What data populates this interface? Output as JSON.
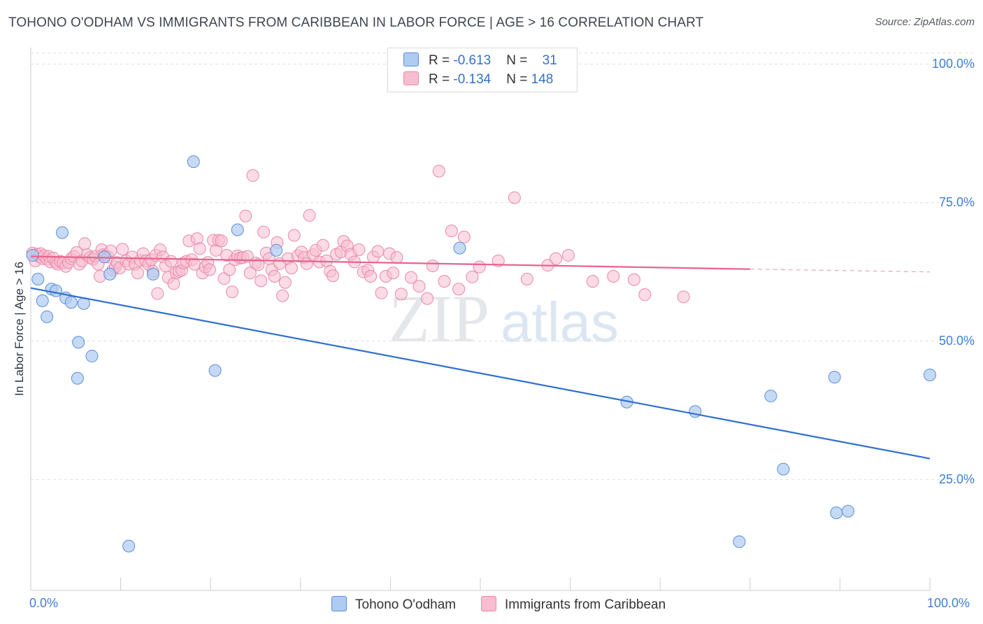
{
  "header": {
    "title": "TOHONO O'ODHAM VS IMMIGRANTS FROM CARIBBEAN IN LABOR FORCE | AGE > 16 CORRELATION CHART",
    "source": "Source: ZipAtlas.com"
  },
  "legend": {
    "series1": {
      "r_label": "R = ",
      "r_value": "-0.613",
      "n_label": "N = ",
      "n_value": "31"
    },
    "series2": {
      "r_label": "R = ",
      "r_value": "-0.134",
      "n_label": "N = ",
      "n_value": "148"
    }
  },
  "watermark": {
    "zip": "ZIP",
    "atlas": "atlas"
  },
  "colors": {
    "blue_fill": "#aecbf2",
    "blue_stroke": "#5b8fd6",
    "blue_line": "#2f6fcf",
    "pink_fill": "#f7bdd0",
    "pink_stroke": "#e889a8",
    "pink_line": "#e8638f",
    "tick_text": "#3f7fd0",
    "grid": "#dcdfe4"
  },
  "chart_data": {
    "type": "scatter",
    "title": "TOHONO O'ODHAM VS IMMIGRANTS FROM CARIBBEAN IN LABOR FORCE | AGE > 16 CORRELATION CHART",
    "ylabel": "In Labor Force | Age > 16",
    "xlabel": "",
    "xlim": [
      0,
      100
    ],
    "ylim": [
      5,
      103
    ],
    "x_tick_labels": [
      "0.0%",
      "100.0%"
    ],
    "y_tick_labels": [
      "25.0%",
      "50.0%",
      "75.0%",
      "100.0%"
    ],
    "y_ticks": [
      25,
      50,
      75,
      100
    ],
    "grid": true,
    "legend_position": "top-center",
    "series": [
      {
        "name": "Tohono O'odham",
        "r": -0.613,
        "n": 31,
        "trend": {
          "x": [
            0,
            100
          ],
          "y": [
            59.6,
            28.8
          ]
        },
        "points": [
          [
            0.2,
            65.5
          ],
          [
            0.8,
            61.2
          ],
          [
            1.3,
            57.3
          ],
          [
            1.8,
            54.4
          ],
          [
            2.3,
            59.4
          ],
          [
            2.8,
            59.1
          ],
          [
            3.5,
            69.6
          ],
          [
            3.9,
            57.8
          ],
          [
            4.5,
            57.0
          ],
          [
            5.2,
            43.3
          ],
          [
            5.3,
            49.8
          ],
          [
            5.9,
            56.8
          ],
          [
            6.8,
            47.3
          ],
          [
            8.2,
            65.2
          ],
          [
            8.8,
            62.1
          ],
          [
            10.9,
            13.0
          ],
          [
            13.6,
            62.1
          ],
          [
            18.1,
            82.4
          ],
          [
            20.5,
            44.7
          ],
          [
            23.0,
            70.1
          ],
          [
            27.3,
            66.4
          ],
          [
            47.7,
            66.8
          ],
          [
            66.3,
            39.0
          ],
          [
            73.9,
            37.3
          ],
          [
            78.8,
            13.8
          ],
          [
            82.3,
            40.1
          ],
          [
            83.7,
            26.9
          ],
          [
            89.4,
            43.5
          ],
          [
            89.6,
            19.0
          ],
          [
            90.9,
            19.3
          ],
          [
            100.0,
            43.9
          ]
        ]
      },
      {
        "name": "Immigrants from Caribbean",
        "r": -0.134,
        "n": 148,
        "trend": {
          "x": [
            0,
            80
          ],
          "y": [
            65.3,
            63.0
          ]
        },
        "trend_dashed": {
          "x": [
            80,
            100
          ],
          "y": [
            63.0,
            62.5
          ]
        },
        "points": [
          [
            0.2,
            65.9
          ],
          [
            0.5,
            64.5
          ],
          [
            0.7,
            65.7
          ],
          [
            0.9,
            65.3
          ],
          [
            1.1,
            65.8
          ],
          [
            1.3,
            64.9
          ],
          [
            1.5,
            65.4
          ],
          [
            1.8,
            64.8
          ],
          [
            2.0,
            65.3
          ],
          [
            2.2,
            64.3
          ],
          [
            2.5,
            65.0
          ],
          [
            2.8,
            64.2
          ],
          [
            3.0,
            63.9
          ],
          [
            3.3,
            64.4
          ],
          [
            3.6,
            64.1
          ],
          [
            3.9,
            63.5
          ],
          [
            4.2,
            64.2
          ],
          [
            4.5,
            64.9
          ],
          [
            4.8,
            65.3
          ],
          [
            5.1,
            66.0
          ],
          [
            5.4,
            63.9
          ],
          [
            5.7,
            64.5
          ],
          [
            6.0,
            67.6
          ],
          [
            6.3,
            65.6
          ],
          [
            6.6,
            65.1
          ],
          [
            6.9,
            64.8
          ],
          [
            7.2,
            65.3
          ],
          [
            7.5,
            63.9
          ],
          [
            7.7,
            61.7
          ],
          [
            7.9,
            66.5
          ],
          [
            8.1,
            65.6
          ],
          [
            8.3,
            65.4
          ],
          [
            8.6,
            65.2
          ],
          [
            8.9,
            66.3
          ],
          [
            9.1,
            62.8
          ],
          [
            9.4,
            63.4
          ],
          [
            9.6,
            64.2
          ],
          [
            9.9,
            63.2
          ],
          [
            10.2,
            66.6
          ],
          [
            10.6,
            64.5
          ],
          [
            10.9,
            63.9
          ],
          [
            11.3,
            65.2
          ],
          [
            11.6,
            63.9
          ],
          [
            11.9,
            62.3
          ],
          [
            12.2,
            64.6
          ],
          [
            12.5,
            65.8
          ],
          [
            12.8,
            64.5
          ],
          [
            13.1,
            63.9
          ],
          [
            13.4,
            64.7
          ],
          [
            13.6,
            62.6
          ],
          [
            13.9,
            65.5
          ],
          [
            14.1,
            58.6
          ],
          [
            14.4,
            66.5
          ],
          [
            14.7,
            65.2
          ],
          [
            15.0,
            63.6
          ],
          [
            15.3,
            61.5
          ],
          [
            15.6,
            64.4
          ],
          [
            15.9,
            60.4
          ],
          [
            16.2,
            62.3
          ],
          [
            16.5,
            62.6
          ],
          [
            16.8,
            62.8
          ],
          [
            17.0,
            64.1
          ],
          [
            17.3,
            64.4
          ],
          [
            17.6,
            68.1
          ],
          [
            17.9,
            64.7
          ],
          [
            18.2,
            63.9
          ],
          [
            18.5,
            68.5
          ],
          [
            18.8,
            66.7
          ],
          [
            19.1,
            62.3
          ],
          [
            19.4,
            63.4
          ],
          [
            19.7,
            64.2
          ],
          [
            19.9,
            62.9
          ],
          [
            20.3,
            68.2
          ],
          [
            20.6,
            66.4
          ],
          [
            20.9,
            68.2
          ],
          [
            21.2,
            68.1
          ],
          [
            21.5,
            61.3
          ],
          [
            21.8,
            65.5
          ],
          [
            22.1,
            62.9
          ],
          [
            22.4,
            58.9
          ],
          [
            22.7,
            64.7
          ],
          [
            23.0,
            65.4
          ],
          [
            23.3,
            65.0
          ],
          [
            23.6,
            65.1
          ],
          [
            23.9,
            72.6
          ],
          [
            24.1,
            65.3
          ],
          [
            24.4,
            62.3
          ],
          [
            24.7,
            79.9
          ],
          [
            25.0,
            64.1
          ],
          [
            25.3,
            63.8
          ],
          [
            25.6,
            60.9
          ],
          [
            25.9,
            69.7
          ],
          [
            26.2,
            65.9
          ],
          [
            26.5,
            64.9
          ],
          [
            26.8,
            62.9
          ],
          [
            27.1,
            61.7
          ],
          [
            27.4,
            67.8
          ],
          [
            27.7,
            64.0
          ],
          [
            28.0,
            58.2
          ],
          [
            28.3,
            60.6
          ],
          [
            28.6,
            64.9
          ],
          [
            29.0,
            63.2
          ],
          [
            29.3,
            69.1
          ],
          [
            29.7,
            65.4
          ],
          [
            30.1,
            66.1
          ],
          [
            30.4,
            65.1
          ],
          [
            30.7,
            64.0
          ],
          [
            31.0,
            72.7
          ],
          [
            31.4,
            65.6
          ],
          [
            31.7,
            66.4
          ],
          [
            32.1,
            64.3
          ],
          [
            32.5,
            67.3
          ],
          [
            32.9,
            64.5
          ],
          [
            33.3,
            62.6
          ],
          [
            33.6,
            61.8
          ],
          [
            34.0,
            65.7
          ],
          [
            34.5,
            66.1
          ],
          [
            34.8,
            68.0
          ],
          [
            35.2,
            67.2
          ],
          [
            35.6,
            65.7
          ],
          [
            36.0,
            64.3
          ],
          [
            36.5,
            66.5
          ],
          [
            37.0,
            62.5
          ],
          [
            37.5,
            62.8
          ],
          [
            37.8,
            61.7
          ],
          [
            38.1,
            65.2
          ],
          [
            38.6,
            66.2
          ],
          [
            39.0,
            58.7
          ],
          [
            39.5,
            61.7
          ],
          [
            39.9,
            65.8
          ],
          [
            40.3,
            62.3
          ],
          [
            40.7,
            65.1
          ],
          [
            41.2,
            58.5
          ],
          [
            42.3,
            61.5
          ],
          [
            43.2,
            59.9
          ],
          [
            44.1,
            57.7
          ],
          [
            44.7,
            63.6
          ],
          [
            45.4,
            80.7
          ],
          [
            46.0,
            60.8
          ],
          [
            46.8,
            69.9
          ],
          [
            47.6,
            59.4
          ],
          [
            48.2,
            68.8
          ],
          [
            49.1,
            61.6
          ],
          [
            49.9,
            63.4
          ],
          [
            52.0,
            64.5
          ],
          [
            53.8,
            75.9
          ],
          [
            55.2,
            61.2
          ],
          [
            57.5,
            63.7
          ],
          [
            58.4,
            64.9
          ],
          [
            59.8,
            65.5
          ],
          [
            62.5,
            60.8
          ],
          [
            64.8,
            61.7
          ],
          [
            67.1,
            61.1
          ],
          [
            68.3,
            58.4
          ],
          [
            72.6,
            58.0
          ]
        ]
      }
    ]
  },
  "bottom_legend": {
    "item1": "Tohono O'odham",
    "item2": "Immigrants from Caribbean"
  }
}
